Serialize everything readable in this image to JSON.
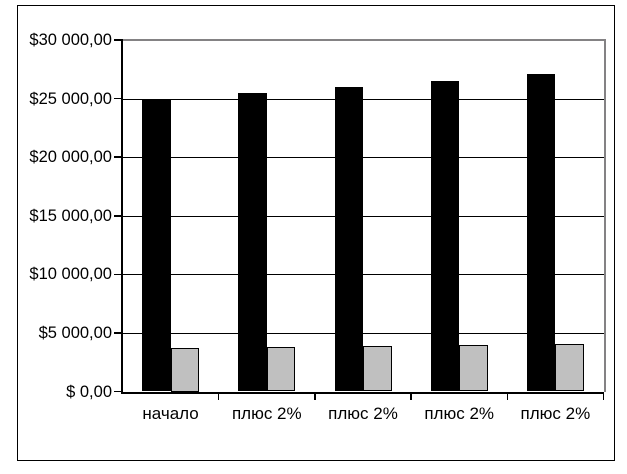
{
  "chart_data": {
    "type": "bar",
    "title": "",
    "xlabel": "",
    "ylabel": "",
    "categories": [
      "начало",
      "плюс 2%",
      "плюс 2%",
      "плюс 2%",
      "плюс 2%"
    ],
    "series": [
      {
        "name": "large-black-series",
        "color": "#000000",
        "values": [
          25000,
          25500,
          26010,
          26530.2,
          27060.8
        ]
      },
      {
        "name": "small-gray-series",
        "color": "#c0c0c0",
        "values": [
          3750,
          3825,
          3901.5,
          3979.53,
          4059.12
        ]
      }
    ],
    "ylim": [
      0,
      30000
    ],
    "y_step": 5000,
    "y_tick_labels": [
      "$ 0,00",
      "$5 000,00",
      "$10 000,00",
      "$15 000,00",
      "$20 000,00",
      "$25 000,00",
      "$30 000,00"
    ],
    "grid": true,
    "legend": "none",
    "colors": {
      "background": "#ffffff",
      "frame_border": "#000000",
      "plot_border_gray": "#848284",
      "gridline": "#000000",
      "axis": "#000000",
      "bar_border": "#000000"
    }
  }
}
